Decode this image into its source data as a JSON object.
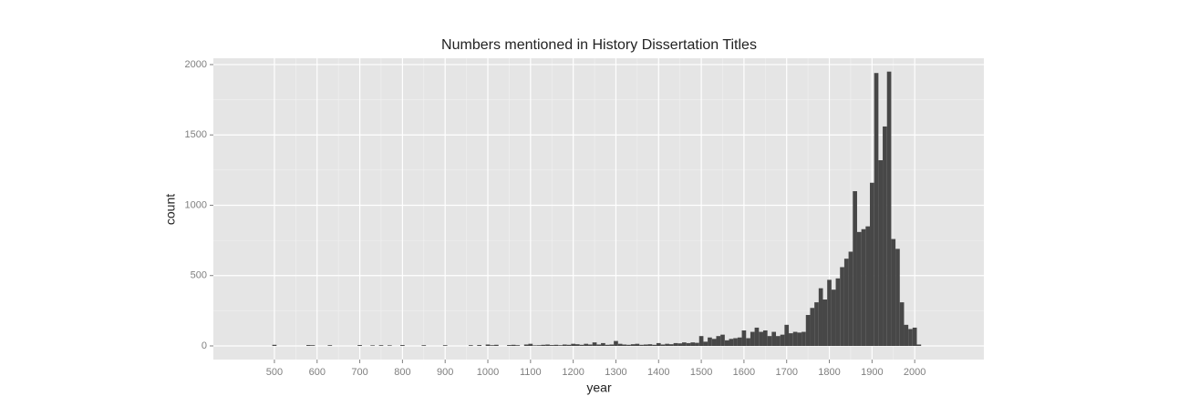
{
  "chart_data": {
    "type": "histogram",
    "title": "Numbers mentioned in History Dissertation Titles",
    "x_label": "year",
    "y_label": "count",
    "color": "#474747",
    "grid": true,
    "xlim": [
      357,
      2162
    ],
    "ylim": [
      -97,
      2045
    ],
    "xticks": [
      500,
      600,
      700,
      800,
      900,
      1000,
      1100,
      1200,
      1300,
      1400,
      1500,
      1600,
      1700,
      1800,
      1900,
      2000
    ],
    "yticks": [
      0,
      500,
      1000,
      1500,
      2000
    ],
    "bins": [
      495,
      505,
      515,
      525,
      535,
      545,
      555,
      565,
      575,
      585,
      595,
      605,
      615,
      625,
      635,
      645,
      655,
      665,
      675,
      685,
      695,
      705,
      715,
      725,
      735,
      745,
      755,
      765,
      775,
      785,
      795,
      805,
      815,
      825,
      835,
      845,
      855,
      865,
      875,
      885,
      895,
      905,
      915,
      925,
      935,
      945,
      955,
      965,
      975,
      985,
      995,
      1005,
      1015,
      1025,
      1035,
      1045,
      1055,
      1065,
      1075,
      1085,
      1095,
      1105,
      1115,
      1125,
      1135,
      1145,
      1155,
      1165,
      1175,
      1185,
      1195,
      1205,
      1215,
      1225,
      1235,
      1245,
      1255,
      1265,
      1275,
      1285,
      1295,
      1305,
      1315,
      1325,
      1335,
      1345,
      1355,
      1365,
      1375,
      1385,
      1395,
      1405,
      1415,
      1425,
      1435,
      1445,
      1455,
      1465,
      1475,
      1485,
      1495,
      1505,
      1515,
      1525,
      1535,
      1545,
      1555,
      1565,
      1575,
      1585,
      1595,
      1605,
      1615,
      1625,
      1635,
      1645,
      1655,
      1665,
      1675,
      1685,
      1695,
      1705,
      1715,
      1725,
      1735,
      1745,
      1755,
      1765,
      1775,
      1785,
      1795,
      1805,
      1815,
      1825,
      1835,
      1845,
      1855,
      1865,
      1875,
      1885,
      1895,
      1905,
      1915,
      1925,
      1935,
      1945,
      1955,
      1965,
      1975,
      1985,
      1995,
      2005,
      2015
    ],
    "values": [
      8,
      0,
      0,
      0,
      0,
      0,
      0,
      0,
      6,
      5,
      0,
      0,
      0,
      5,
      0,
      0,
      0,
      0,
      0,
      0,
      6,
      0,
      0,
      4,
      0,
      5,
      0,
      4,
      0,
      0,
      6,
      0,
      0,
      0,
      0,
      5,
      0,
      0,
      0,
      0,
      5,
      0,
      0,
      0,
      0,
      0,
      5,
      0,
      6,
      0,
      10,
      5,
      8,
      0,
      0,
      6,
      8,
      5,
      0,
      10,
      15,
      4,
      5,
      8,
      10,
      6,
      8,
      5,
      10,
      8,
      15,
      12,
      8,
      15,
      10,
      25,
      10,
      20,
      8,
      10,
      35,
      15,
      10,
      8,
      12,
      15,
      8,
      10,
      12,
      8,
      20,
      10,
      15,
      12,
      20,
      18,
      25,
      20,
      25,
      22,
      70,
      30,
      60,
      50,
      70,
      80,
      40,
      50,
      55,
      60,
      110,
      55,
      100,
      130,
      100,
      110,
      70,
      100,
      70,
      80,
      150,
      90,
      100,
      95,
      100,
      220,
      270,
      310,
      410,
      330,
      470,
      400,
      480,
      560,
      620,
      670,
      1100,
      810,
      830,
      850,
      1160,
      1940,
      1320,
      1560,
      1950,
      760,
      690,
      310,
      150,
      120,
      130,
      10
    ]
  }
}
